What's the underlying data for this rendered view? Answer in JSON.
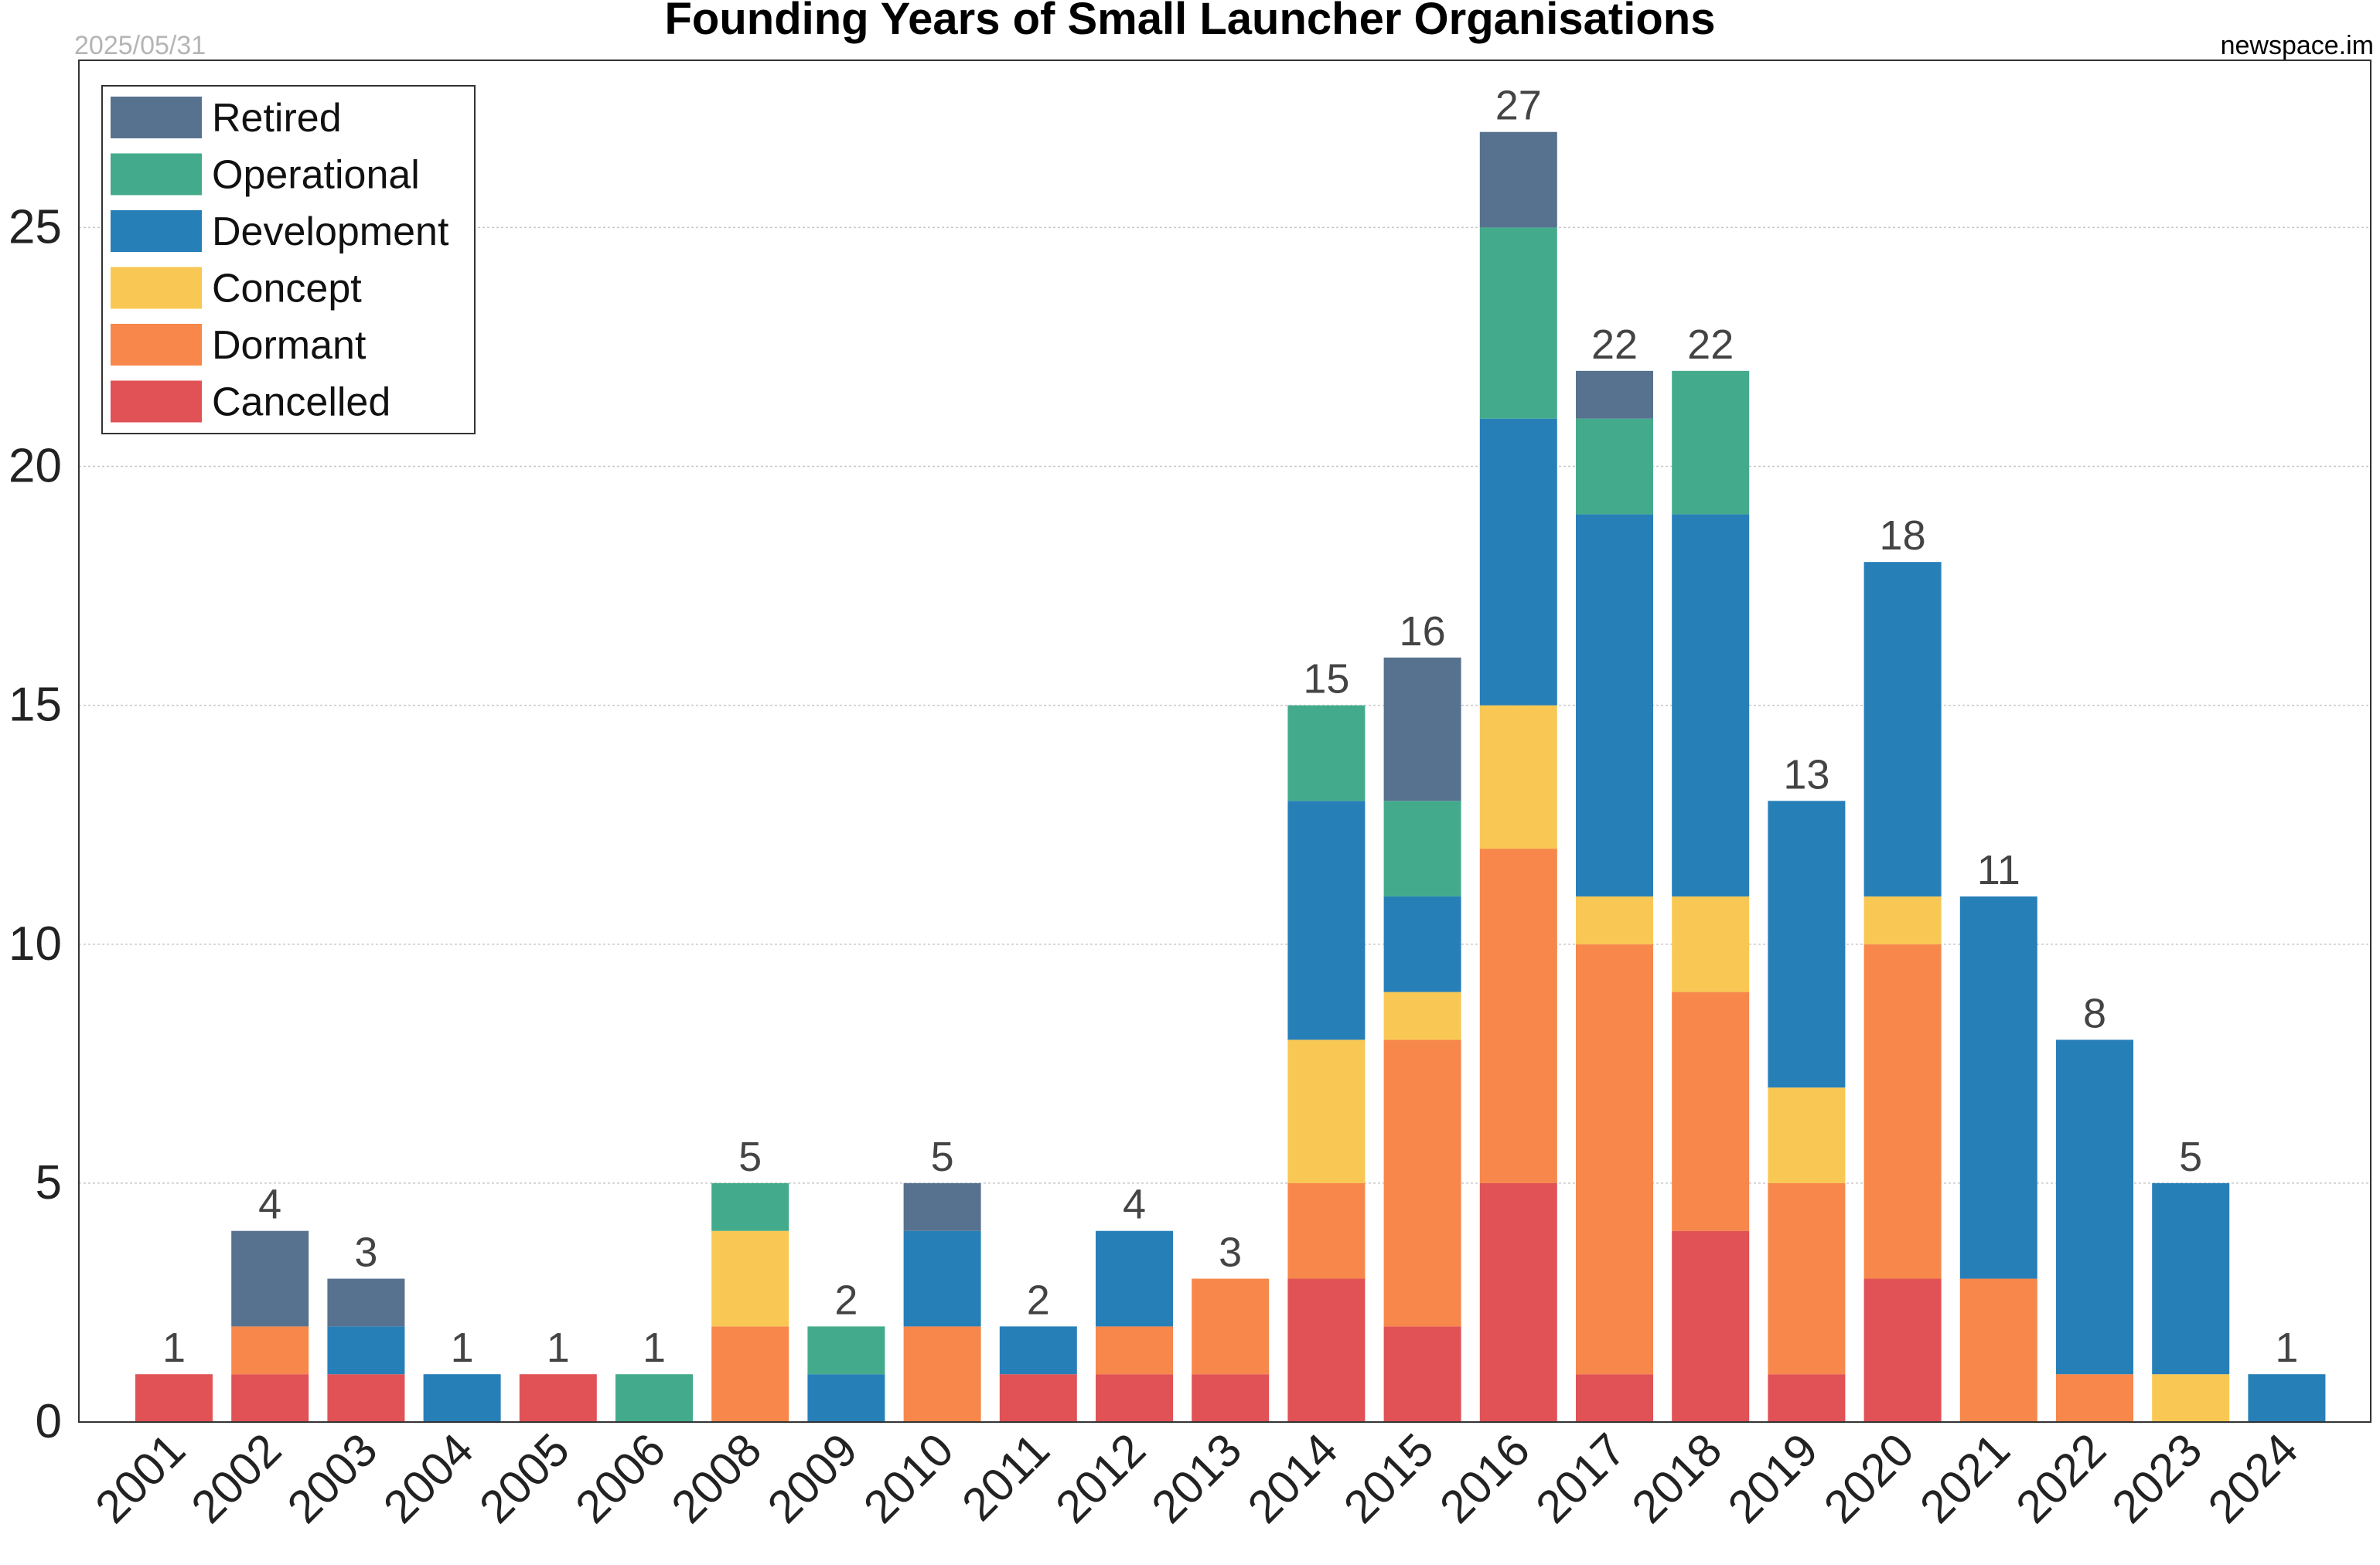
{
  "chart_data": {
    "type": "bar",
    "stacked": true,
    "title": "Founding Years of Small Launcher Organisations",
    "date": "2025/05/31",
    "source": "newspace.im",
    "xlabel": "",
    "ylabel": "",
    "ylim": [
      0,
      28.5
    ],
    "yticks": [
      "0",
      "5",
      "10",
      "15",
      "20",
      "25"
    ],
    "grid": true,
    "legend_position": "top-left",
    "categories": [
      "2001",
      "2002",
      "2003",
      "2004",
      "2005",
      "2006",
      "2008",
      "2009",
      "2010",
      "2011",
      "2012",
      "2013",
      "2014",
      "2015",
      "2016",
      "2017",
      "2018",
      "2019",
      "2020",
      "2021",
      "2022",
      "2023",
      "2024"
    ],
    "series": [
      {
        "name": "Cancelled",
        "color": "#e05255",
        "values": [
          1,
          1,
          1,
          0,
          1,
          0,
          0,
          0,
          0,
          1,
          1,
          1,
          3,
          2,
          5,
          1,
          4,
          1,
          3,
          0,
          0,
          0,
          0
        ]
      },
      {
        "name": "Dormant",
        "color": "#f7874a",
        "values": [
          0,
          1,
          0,
          0,
          0,
          0,
          2,
          0,
          2,
          0,
          1,
          2,
          2,
          6,
          7,
          9,
          5,
          4,
          7,
          3,
          1,
          0,
          0
        ]
      },
      {
        "name": "Concept",
        "color": "#f9c854",
        "values": [
          0,
          0,
          0,
          0,
          0,
          0,
          2,
          0,
          0,
          0,
          0,
          0,
          3,
          1,
          3,
          1,
          2,
          2,
          1,
          0,
          0,
          1,
          0
        ]
      },
      {
        "name": "Development",
        "color": "#277fb8",
        "values": [
          0,
          0,
          1,
          1,
          0,
          0,
          0,
          1,
          2,
          1,
          2,
          0,
          5,
          2,
          6,
          8,
          8,
          6,
          7,
          8,
          7,
          4,
          1
        ]
      },
      {
        "name": "Operational",
        "color": "#43ab8b",
        "values": [
          0,
          0,
          0,
          0,
          0,
          1,
          1,
          1,
          0,
          0,
          0,
          0,
          2,
          2,
          4,
          2,
          3,
          0,
          0,
          0,
          0,
          0,
          0
        ]
      },
      {
        "name": "Retired",
        "color": "#57728f",
        "values": [
          0,
          2,
          1,
          0,
          0,
          0,
          0,
          0,
          1,
          0,
          0,
          0,
          0,
          3,
          2,
          1,
          0,
          0,
          0,
          0,
          0,
          0,
          0
        ]
      }
    ],
    "totals": [
      "1",
      "4",
      "3",
      "1",
      "1",
      "1",
      "5",
      "2",
      "5",
      "2",
      "4",
      "3",
      "15",
      "16",
      "27",
      "22",
      "22",
      "13",
      "18",
      "11",
      "8",
      "5",
      "1"
    ],
    "legend_order": [
      "Retired",
      "Operational",
      "Development",
      "Concept",
      "Dormant",
      "Cancelled"
    ]
  }
}
